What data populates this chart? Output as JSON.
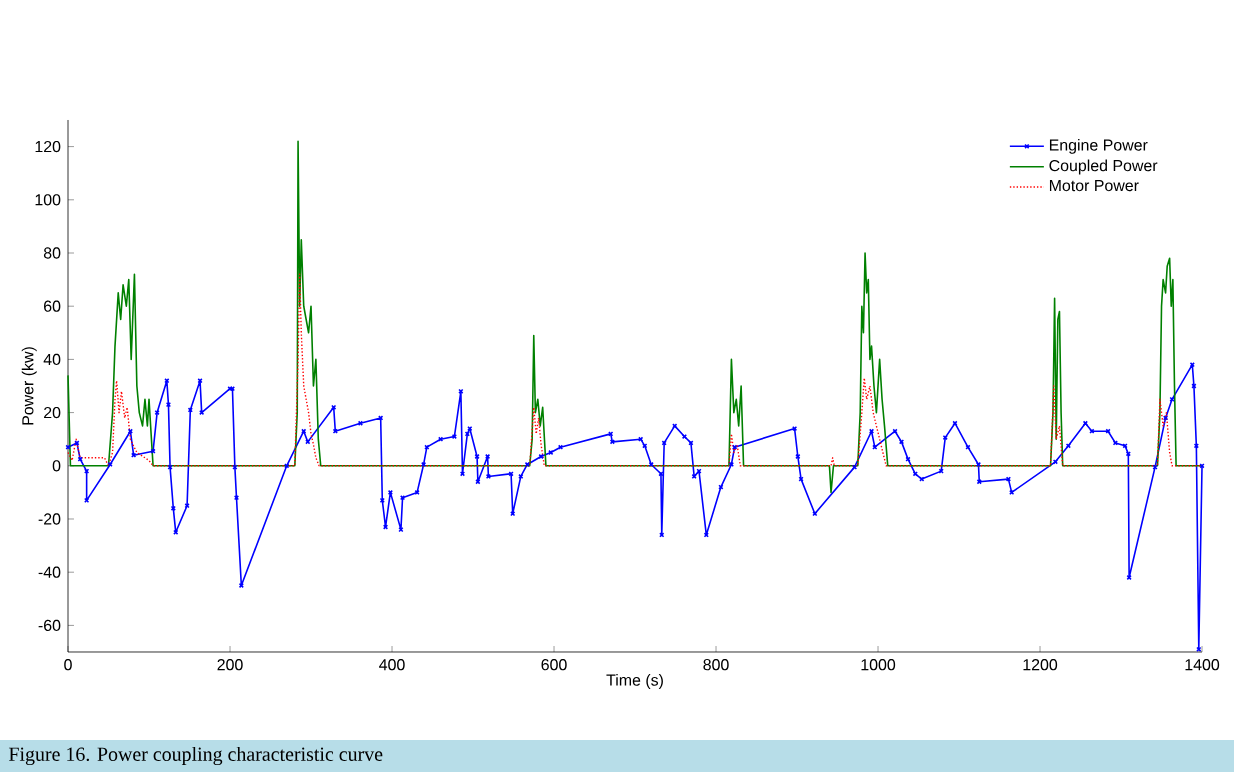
{
  "chart_data": {
    "type": "line",
    "xlabel": "Time (s)",
    "ylabel": "Power (kw)",
    "xlim": [
      0,
      1400
    ],
    "xticks": [
      0,
      200,
      400,
      600,
      800,
      1000,
      1200,
      1400
    ],
    "ylim": [
      -70,
      130
    ],
    "yticks": [
      -60,
      -40,
      -20,
      0,
      20,
      40,
      60,
      80,
      100,
      120
    ],
    "legend": "top right",
    "annotations": [
      "Figure 16. Power coupling characteristic curve"
    ],
    "series": [
      {
        "name": "Engine Power",
        "color": "#0000ff",
        "marker": "cross",
        "line_style": "solid",
        "x": [
          0,
          11,
          15,
          23,
          23,
          52,
          77,
          81,
          105,
          110,
          122,
          124,
          126,
          130,
          133,
          147,
          151,
          163,
          165,
          200,
          203,
          206,
          208,
          214,
          270,
          291,
          296,
          328,
          330,
          361,
          386,
          388,
          392,
          398,
          411,
          413,
          431,
          439,
          443,
          460,
          477,
          485,
          487,
          493,
          496,
          505,
          506,
          518,
          519,
          547,
          549,
          559,
          567,
          584,
          596,
          608,
          670,
          672,
          707,
          712,
          720,
          732,
          733,
          736,
          749,
          761,
          769,
          773,
          779,
          788,
          806,
          819,
          823,
          897,
          901,
          905,
          922,
          971,
          992,
          996,
          1021,
          1029,
          1037,
          1046,
          1054,
          1078,
          1083,
          1095,
          1111,
          1124,
          1125,
          1161,
          1165,
          1219,
          1235,
          1256,
          1264,
          1284,
          1293,
          1305,
          1309,
          1310,
          1342,
          1355,
          1363,
          1388,
          1390,
          1393,
          1396,
          1400
        ],
        "values": [
          7,
          8.6,
          2.5,
          -2,
          -13,
          0.5,
          13,
          4,
          5.5,
          20,
          32,
          23,
          -0.5,
          -16,
          -25,
          -15,
          21,
          32,
          20,
          29,
          29,
          -0.5,
          -12,
          -45,
          0,
          13,
          9,
          22,
          13,
          16,
          18,
          -13,
          -23,
          -10,
          -24,
          -12,
          -10,
          0.5,
          7,
          10,
          11,
          28,
          -3,
          12,
          14,
          3.5,
          -6,
          3.5,
          -4,
          -3,
          -18,
          -4,
          0.5,
          3.5,
          5,
          7,
          12,
          9,
          10,
          7.5,
          0.5,
          -3,
          -26,
          8.6,
          15,
          11,
          8.6,
          -4,
          -2,
          -26,
          -8,
          0.5,
          7,
          14,
          3.5,
          -5,
          -18,
          -0.5,
          13,
          7,
          13,
          9,
          2.5,
          -3,
          -5,
          -2,
          10.6,
          16,
          7,
          0.5,
          -6,
          -5,
          -10,
          1.5,
          7.5,
          16,
          13,
          13,
          8.6,
          7.5,
          4.5,
          -42,
          -0.5,
          18,
          25,
          38,
          30,
          7.5,
          -69,
          0
        ]
      },
      {
        "name": "Coupled Power",
        "color": "#008000",
        "marker": "none",
        "line_style": "solid",
        "x": [
          0,
          3,
          50,
          55,
          58,
          62,
          65,
          68,
          72,
          75,
          78,
          82,
          85,
          88,
          92,
          95,
          98,
          100,
          103,
          105,
          280,
          283,
          284,
          286,
          288,
          291,
          294,
          297,
          300,
          303,
          306,
          309,
          312,
          570,
          573,
          575,
          577,
          580,
          583,
          586,
          590,
          816,
          819,
          822,
          825,
          828,
          831,
          834,
          940,
          942,
          945,
          975,
          978,
          980,
          982,
          984,
          986,
          988,
          990,
          992,
          995,
          998,
          1002,
          1005,
          1008,
          1012,
          1213,
          1216,
          1218,
          1220,
          1222,
          1224,
          1226,
          1228,
          1345,
          1348,
          1350,
          1352,
          1355,
          1357,
          1360,
          1362,
          1364,
          1366,
          1368,
          1400
        ],
        "values": [
          34,
          0,
          0,
          20,
          45,
          65,
          55,
          68,
          60,
          70,
          40,
          72,
          30,
          20,
          15,
          25,
          15,
          25,
          10,
          0,
          0,
          20,
          122,
          60,
          85,
          60,
          55,
          50,
          60,
          30,
          40,
          10,
          0,
          0,
          10,
          49,
          20,
          25,
          15,
          22,
          0,
          0,
          40,
          20,
          25,
          15,
          30,
          0,
          0,
          -10,
          0,
          0,
          20,
          60,
          50,
          80,
          65,
          70,
          40,
          45,
          30,
          20,
          40,
          25,
          15,
          0,
          0,
          20,
          63,
          10,
          55,
          58,
          20,
          0,
          0,
          20,
          60,
          70,
          65,
          75,
          78,
          60,
          70,
          30,
          0,
          0
        ]
      },
      {
        "name": "Motor Power",
        "color": "#ff0000",
        "marker": "none",
        "line_style": "dotted",
        "x": [
          0,
          5,
          10,
          15,
          45,
          50,
          55,
          58,
          60,
          63,
          66,
          70,
          73,
          77,
          80,
          85,
          90,
          95,
          100,
          105,
          280,
          284,
          286,
          288,
          291,
          294,
          297,
          300,
          303,
          306,
          310,
          570,
          575,
          578,
          581,
          584,
          588,
          816,
          819,
          822,
          826,
          830,
          942,
          944,
          946,
          975,
          980,
          983,
          986,
          990,
          994,
          998,
          1002,
          1006,
          1010,
          1213,
          1217,
          1220,
          1224,
          1228,
          1345,
          1348,
          1352,
          1356,
          1360,
          1363,
          1400
        ],
        "values": [
          5,
          2,
          10,
          3,
          3,
          0,
          5,
          25,
          32,
          20,
          28,
          18,
          22,
          10,
          8,
          5,
          4,
          3,
          2,
          0,
          0,
          40,
          72,
          50,
          30,
          25,
          20,
          12,
          8,
          3,
          0,
          0,
          22,
          12,
          18,
          8,
          0,
          0,
          12,
          5,
          8,
          0,
          0,
          3,
          0,
          0,
          20,
          33,
          25,
          30,
          20,
          15,
          10,
          5,
          0,
          0,
          30,
          10,
          15,
          0,
          0,
          25,
          15,
          20,
          5,
          0,
          0
        ]
      }
    ]
  }
}
